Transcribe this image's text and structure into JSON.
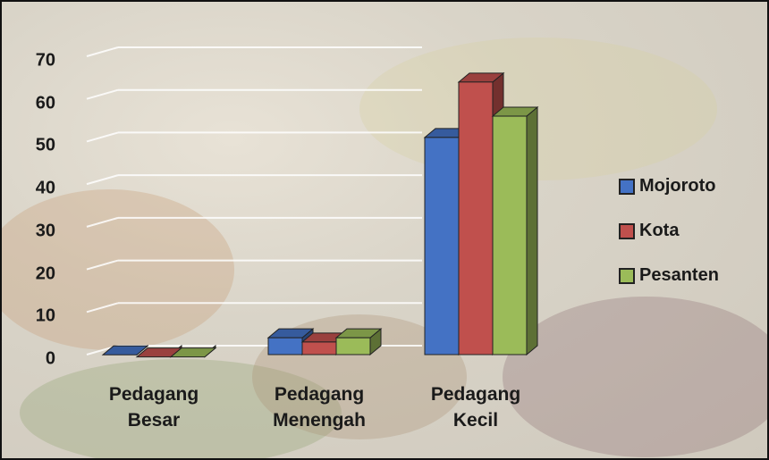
{
  "chart_data": {
    "type": "bar3d",
    "categories": [
      "Pedagang Besar",
      "Pedagang Menengah",
      "Pedagang Kecil"
    ],
    "series": [
      {
        "name": "Mojoroto",
        "color": "#4472c4",
        "values": [
          1,
          5,
          52
        ]
      },
      {
        "name": "Kota",
        "color": "#c0504d",
        "values": [
          0.5,
          4,
          65
        ]
      },
      {
        "name": "Pesanten",
        "color": "#9bbb59",
        "values": [
          0.5,
          5,
          57
        ]
      }
    ],
    "ylim": [
      0,
      70
    ],
    "yticks": [
      0,
      10,
      20,
      30,
      40,
      50,
      60,
      70
    ],
    "grid": true,
    "legend": "right"
  }
}
